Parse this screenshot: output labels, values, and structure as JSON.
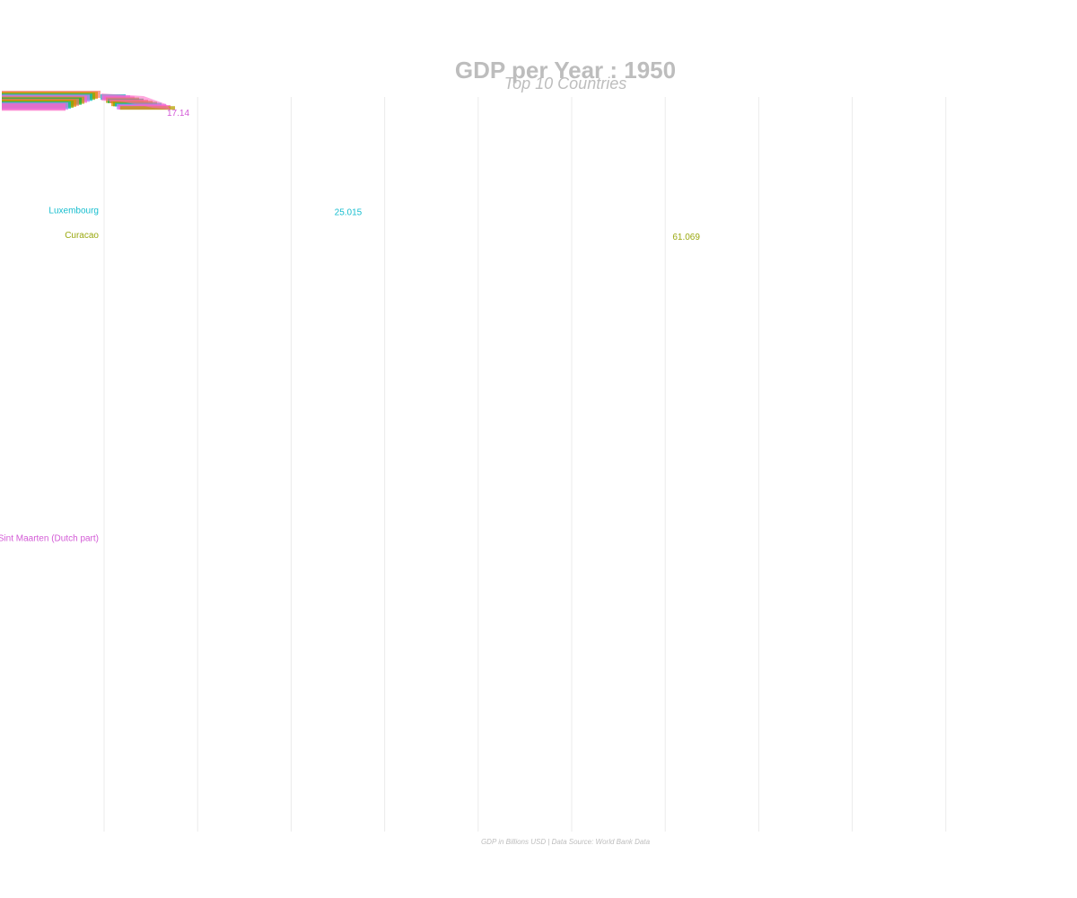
{
  "header": {
    "title": "GDP per Year : 1950",
    "subtitle": "Top 10 Countries"
  },
  "caption": "GDP in Billions USD | Data Source: World Bank Data",
  "chart_data": {
    "type": "bar",
    "title": "GDP per Year : 1950",
    "subtitle": "Top 10 Countries",
    "caption": "GDP in Billions USD | Data Source: World Bank Data",
    "orientation": "horizontal",
    "grid": "vertical",
    "legend": "none",
    "xlim": [
      0,
      90
    ],
    "x_step": 10,
    "series": [
      {
        "name": "Luxembourg",
        "rank": 9,
        "value": 25.015,
        "value_label": "25.015",
        "color": "#17becf"
      },
      {
        "name": "Curacao",
        "rank": 10.9,
        "value": 61.069,
        "value_label": "61.069",
        "color": "#9aa80f"
      },
      {
        "name": "Sint Maarten (Dutch part)",
        "rank": 34,
        "value": 0,
        "value_label": "",
        "color": "#d35ad6"
      }
    ],
    "clutter_label": "17.14",
    "clutter_colors": [
      "#f8766d",
      "#e38900",
      "#7cae00",
      "#00bfc4",
      "#c77cff",
      "#ff61c3",
      "#b79f00",
      "#00ba38"
    ]
  }
}
